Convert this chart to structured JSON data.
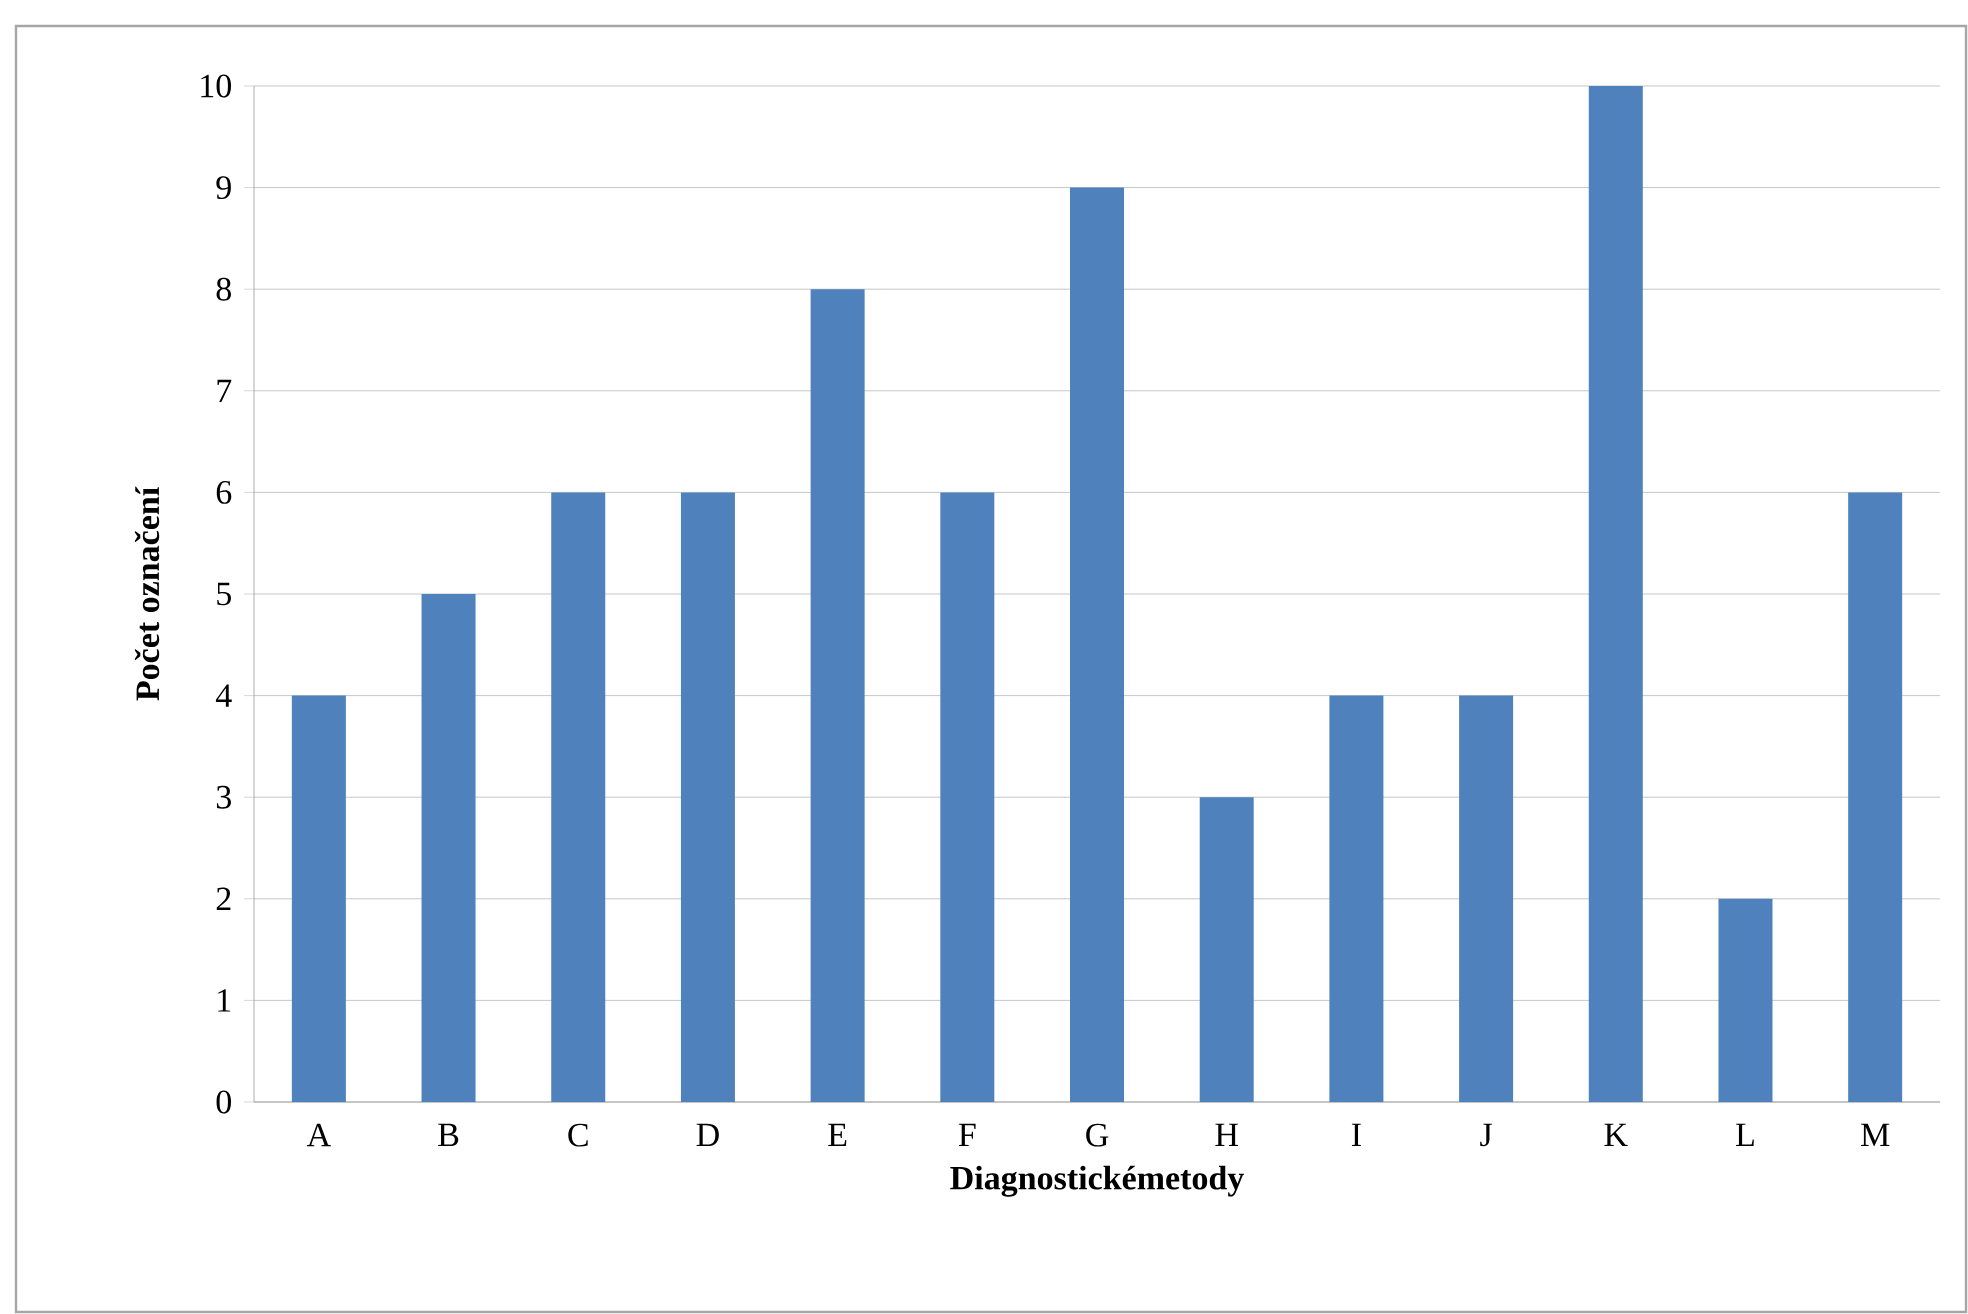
{
  "chart_data": {
    "type": "bar",
    "categories": [
      "A",
      "B",
      "C",
      "D",
      "E",
      "F",
      "G",
      "H",
      "I",
      "J",
      "K",
      "L",
      "M"
    ],
    "values": [
      4,
      5,
      6,
      6,
      8,
      6,
      9,
      3,
      4,
      4,
      10,
      2,
      6
    ],
    "color": "#4f81bd",
    "xlabel": "Diagnostickémetody",
    "ylabel": "Počet označení",
    "ylim": [
      0,
      10
    ],
    "yticks": [
      0,
      1,
      2,
      3,
      4,
      5,
      6,
      7,
      8,
      9,
      10
    ],
    "grid": "y"
  }
}
